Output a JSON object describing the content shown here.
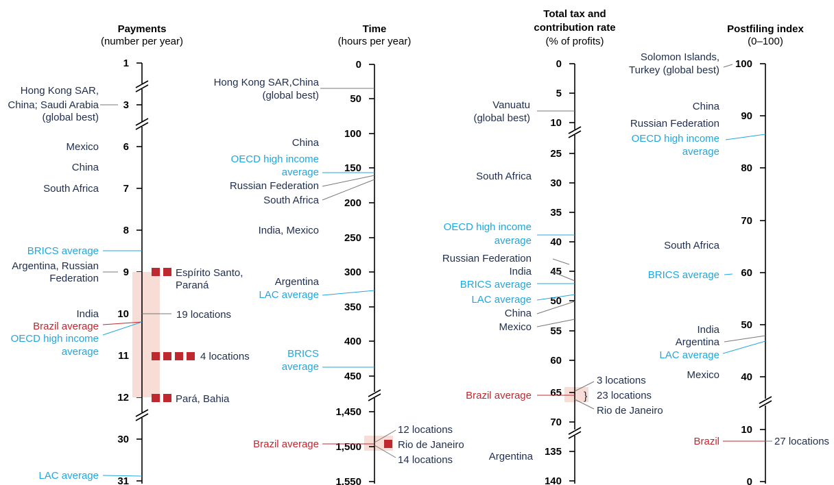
{
  "colors": {
    "text": "#1f2d4e",
    "blue": "#21a7df",
    "red": "#c0282f",
    "highlight": "#f7ddd6",
    "axis": "#000000",
    "leader": "#777777"
  },
  "chart_data": {
    "type": "dot-axis comparison",
    "panels": [
      {
        "title": "Payments",
        "subtitle": "(number per year)",
        "ticks": [
          "1",
          "3",
          "6",
          "7",
          "8",
          "9",
          "10",
          "11",
          "12",
          "30",
          "31"
        ],
        "labels": [
          {
            "text": "Hong Kong SAR,",
            "color": "text",
            "value": 3
          },
          {
            "text": "China; Saudi Arabia",
            "color": "text",
            "value": 3
          },
          {
            "text": "(global best)",
            "color": "text",
            "value": 3
          },
          {
            "text": "Mexico",
            "color": "text",
            "value": 6
          },
          {
            "text": "China",
            "color": "text",
            "value": 6.5
          },
          {
            "text": "South Africa",
            "color": "text",
            "value": 7
          },
          {
            "text": "BRICS average",
            "color": "blue",
            "value": 8.6
          },
          {
            "text": "Argentina, Russian",
            "color": "text",
            "value": 9
          },
          {
            "text": "Federation",
            "color": "text",
            "value": 9
          },
          {
            "text": "India",
            "color": "text",
            "value": 10
          },
          {
            "text": "Brazil average",
            "color": "red",
            "value": 10.3
          },
          {
            "text": "OECD high income",
            "color": "blue",
            "value": 10.4
          },
          {
            "text": "average",
            "color": "blue",
            "value": 10.4
          },
          {
            "text": "LAC average",
            "color": "blue",
            "value": 31
          }
        ],
        "right_labels": [
          {
            "text": "Espírito Santo,",
            "value": 9
          },
          {
            "text": "Paraná",
            "value": 9
          },
          {
            "text": "19 locations",
            "value": 10
          },
          {
            "text": "4 locations",
            "value": 11
          },
          {
            "text": "Pará, Bahia",
            "value": 12
          }
        ],
        "markers": [
          {
            "value": 9,
            "count": 2
          },
          {
            "value": 11,
            "count": 4
          },
          {
            "value": 12,
            "count": 2
          }
        ]
      },
      {
        "title": "Time",
        "subtitle": "(hours per year)",
        "ticks": [
          "0",
          "50",
          "100",
          "150",
          "200",
          "250",
          "300",
          "350",
          "400",
          "450",
          "1,450",
          "1,500",
          "1,550"
        ],
        "labels": [
          {
            "text": "Hong Kong SAR,China",
            "color": "text",
            "value": 34
          },
          {
            "text": "(global best)",
            "color": "text",
            "value": 34
          },
          {
            "text": "China",
            "color": "text",
            "value": 142
          },
          {
            "text": "OECD high income",
            "color": "blue",
            "value": 153
          },
          {
            "text": "average",
            "color": "blue",
            "value": 153
          },
          {
            "text": "Russian Federation",
            "color": "text",
            "value": 168
          },
          {
            "text": "South Africa",
            "color": "text",
            "value": 200
          },
          {
            "text": "India, Mexico",
            "color": "text",
            "value": 216
          },
          {
            "text": "Argentina",
            "color": "text",
            "value": 312
          },
          {
            "text": "LAC average",
            "color": "blue",
            "value": 312
          },
          {
            "text": "BRICS",
            "color": "blue",
            "value": 424
          },
          {
            "text": "average",
            "color": "blue",
            "value": 424
          },
          {
            "text": "Brazil average",
            "color": "red",
            "value": 1483
          }
        ],
        "right_labels": [
          {
            "text": "12 locations",
            "value": 1483
          },
          {
            "text": "Rio de Janeiro",
            "value": 1483
          },
          {
            "text": "14 locations",
            "value": 1483
          }
        ],
        "markers": [
          {
            "value": 1483,
            "count": 1
          }
        ]
      },
      {
        "title": "Total tax and",
        "title2": "contribution rate",
        "subtitle": "(% of profits)",
        "ticks": [
          "0",
          "5",
          "10",
          "25",
          "30",
          "35",
          "40",
          "45",
          "50",
          "55",
          "60",
          "65",
          "70",
          "135",
          "140"
        ],
        "labels": [
          {
            "text": "Vanuatu",
            "color": "text",
            "value": 8
          },
          {
            "text": "(global best)",
            "color": "text",
            "value": 8
          },
          {
            "text": "South Africa",
            "color": "text",
            "value": 28.8
          },
          {
            "text": "OECD high income",
            "color": "blue",
            "value": 41.3
          },
          {
            "text": "average",
            "color": "blue",
            "value": 41.3
          },
          {
            "text": "Russian Federation",
            "color": "text",
            "value": 48.7
          },
          {
            "text": "India",
            "color": "text",
            "value": 61.8
          },
          {
            "text": "BRICS average",
            "color": "blue",
            "value": 47.8
          },
          {
            "text": "LAC average",
            "color": "blue",
            "value": 47.6
          },
          {
            "text": "China",
            "color": "text",
            "value": 63.7
          },
          {
            "text": "Mexico",
            "color": "text",
            "value": 51.8
          },
          {
            "text": "Brazil average",
            "color": "red",
            "value": 65
          },
          {
            "text": "Argentina",
            "color": "text",
            "value": 137.3
          }
        ],
        "right_labels": [
          {
            "text": "3 locations",
            "value": 65
          },
          {
            "text": "23 locations",
            "value": 65
          },
          {
            "text": "Rio de Janeiro",
            "value": 65
          }
        ],
        "markers": []
      },
      {
        "title": "Postfiling index",
        "subtitle": "(0–100)",
        "ticks": [
          "100",
          "90",
          "80",
          "70",
          "60",
          "50",
          "40",
          "10",
          "0"
        ],
        "labels": [
          {
            "text": "Solomon Islands,",
            "color": "text",
            "value": 100
          },
          {
            "text": "Turkey (global best)",
            "color": "text",
            "value": 100
          },
          {
            "text": "China",
            "color": "text",
            "value": 86.5
          },
          {
            "text": "Russian Federation",
            "color": "text",
            "value": 86.5
          },
          {
            "text": "OECD high income",
            "color": "blue",
            "value": 86.5
          },
          {
            "text": "average",
            "color": "blue",
            "value": 86.5
          },
          {
            "text": "South Africa",
            "color": "text",
            "value": 65.6
          },
          {
            "text": "BRICS average",
            "color": "blue",
            "value": 60
          },
          {
            "text": "India",
            "color": "text",
            "value": 48
          },
          {
            "text": "Argentina",
            "color": "text",
            "value": 48
          },
          {
            "text": "LAC average",
            "color": "blue",
            "value": 46.9
          },
          {
            "text": "Mexico",
            "color": "text",
            "value": 42.5
          },
          {
            "text": "Brazil",
            "color": "red",
            "value": 8
          }
        ],
        "right_labels": [
          {
            "text": "27 locations",
            "value": 8
          }
        ],
        "markers": []
      }
    ]
  }
}
